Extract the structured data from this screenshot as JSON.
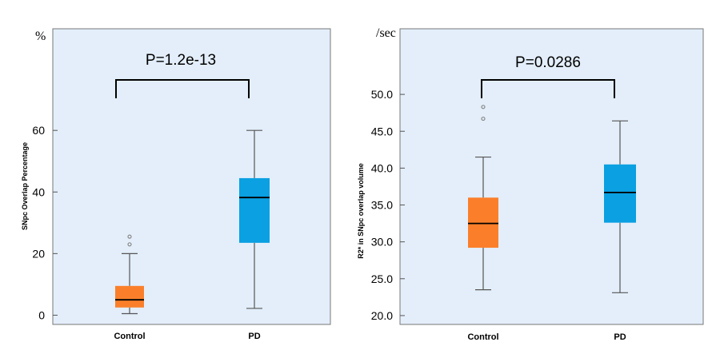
{
  "colors": {
    "panel_bg": "#e3eefa",
    "panel_border": "#777777",
    "control": "#fb7f2a",
    "pd": "#0aa0e2",
    "whisker": "#555555",
    "outlier": "#888888"
  },
  "chart_data": [
    {
      "type": "box",
      "unit_label": "%",
      "ylabel": "SNpc Overlap Percentage",
      "categories": [
        "Control",
        "PD"
      ],
      "yticks": [
        "0",
        "20",
        "40",
        "60"
      ],
      "tick_values": [
        0,
        20,
        40,
        60
      ],
      "ylim": [
        -3,
        93
      ],
      "annotation": "P=1.2e-13",
      "boxes": [
        {
          "name": "Control",
          "min": 0.5,
          "q1": 2.5,
          "median": 5,
          "q3": 9.5,
          "max": 20,
          "outliers": [
            23,
            25.5
          ]
        },
        {
          "name": "PD",
          "min": 2.2,
          "q1": 23.5,
          "median": 38.2,
          "q3": 44.5,
          "max": 60
        }
      ]
    },
    {
      "type": "box",
      "unit_label": "/sec",
      "ylabel": "R2* in SNpc overlap volume",
      "categories": [
        "Control",
        "PD"
      ],
      "yticks": [
        "20.0",
        "25.0",
        "30.0",
        "35.0",
        "40.0",
        "45.0",
        "50.0"
      ],
      "tick_values": [
        20,
        25,
        30,
        35,
        40,
        45,
        50
      ],
      "ylim": [
        18.8,
        58.9
      ],
      "annotation": "P=0.0286",
      "boxes": [
        {
          "name": "Control",
          "min": 23.5,
          "q1": 29.2,
          "median": 32.5,
          "q3": 36,
          "max": 41.5,
          "outliers": [
            46.7,
            48.3
          ]
        },
        {
          "name": "PD",
          "min": 23.1,
          "q1": 32.6,
          "median": 36.7,
          "q3": 40.5,
          "max": 46.4
        }
      ]
    }
  ]
}
